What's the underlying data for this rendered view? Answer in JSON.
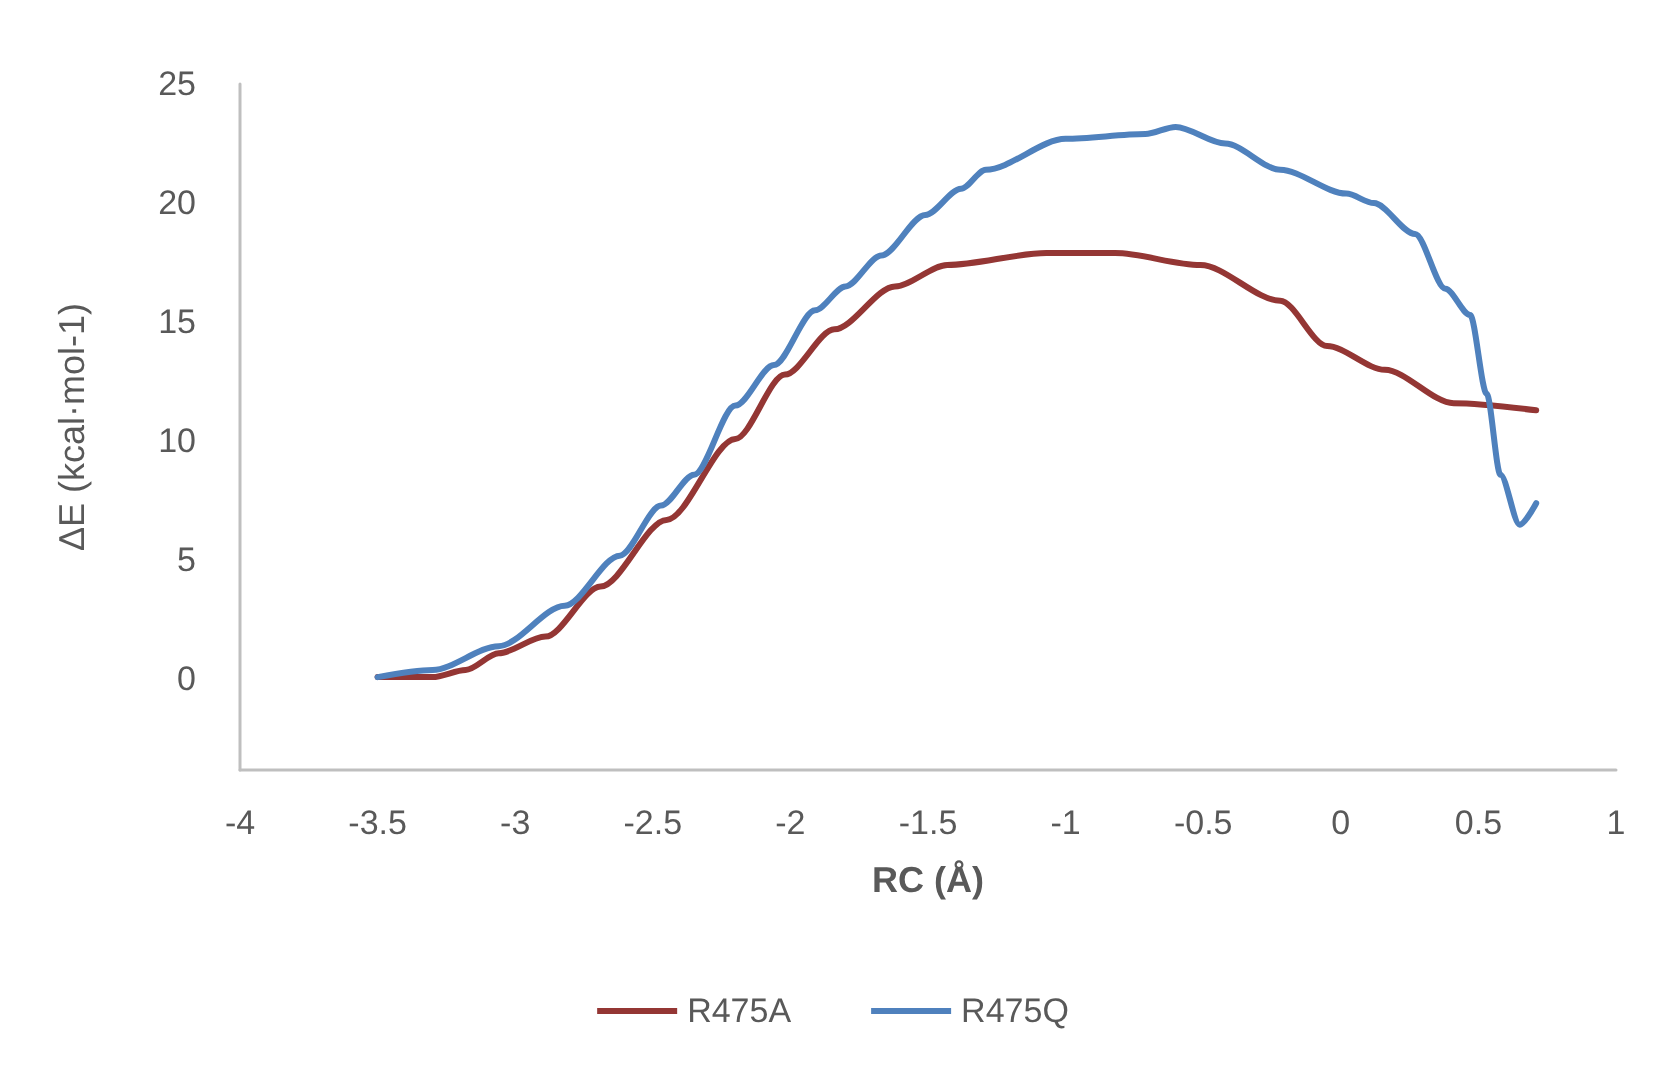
{
  "chart_data": {
    "type": "line",
    "xlabel": "RC (Å)",
    "ylabel": "ΔE (kcal·mol-1)",
    "xlim": [
      -4,
      1
    ],
    "xticks": [
      -4,
      -3.5,
      -3,
      -2.5,
      -2,
      -1.5,
      -1,
      -0.5,
      0,
      0.5,
      1
    ],
    "ylim": [
      -3.8,
      25
    ],
    "yticks": [
      0,
      5,
      10,
      15,
      20,
      25
    ],
    "grid": false,
    "legend": "bottom",
    "marker": "none",
    "line_style": "solid",
    "series": [
      {
        "name": "R475A",
        "color": "#943634",
        "x": [
          -3.5,
          -3.3,
          -3.18,
          -3.06,
          -2.89,
          -2.69,
          -2.45,
          -2.2,
          -2.02,
          -1.84,
          -1.62,
          -1.43,
          -1.07,
          -0.82,
          -0.51,
          -0.22,
          -0.05,
          0.16,
          0.41,
          0.71
        ],
        "values": [
          0.1,
          0.1,
          0.4,
          1.1,
          1.8,
          3.9,
          6.7,
          10.1,
          12.8,
          14.7,
          16.5,
          17.4,
          17.9,
          17.9,
          17.4,
          15.9,
          14.0,
          13.0,
          11.6,
          11.3
        ]
      },
      {
        "name": "R475Q",
        "color": "#4f81bd",
        "x": [
          -3.5,
          -3.3,
          -3.06,
          -2.82,
          -2.62,
          -2.47,
          -2.35,
          -2.2,
          -2.06,
          -1.91,
          -1.8,
          -1.67,
          -1.51,
          -1.38,
          -1.29,
          -1.0,
          -0.71,
          -0.6,
          -0.42,
          -0.22,
          0.02,
          0.12,
          0.27,
          0.38,
          0.47,
          0.53,
          0.58,
          0.65,
          0.71
        ],
        "values": [
          0.1,
          0.4,
          1.4,
          3.1,
          5.2,
          7.3,
          8.6,
          11.5,
          13.2,
          15.5,
          16.5,
          17.8,
          19.5,
          20.6,
          21.4,
          22.7,
          22.9,
          23.2,
          22.5,
          21.4,
          20.4,
          20.0,
          18.7,
          16.4,
          15.3,
          12.0,
          8.6,
          6.5,
          7.4
        ]
      }
    ]
  }
}
